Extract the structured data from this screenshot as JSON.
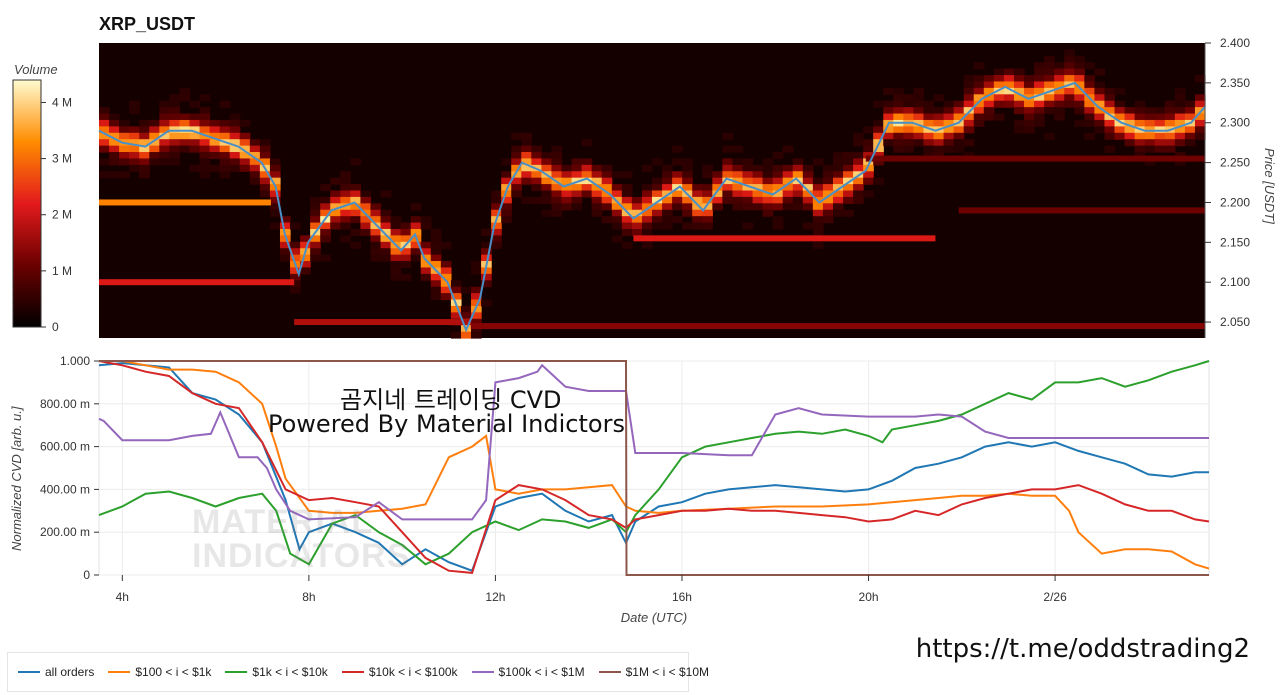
{
  "title": "XRP_USDT",
  "colorbar": {
    "label": "Volume",
    "ticks": [
      "4 M",
      "3 M",
      "2 M",
      "1 M",
      "0"
    ],
    "values": [
      4,
      3,
      2,
      1,
      0
    ]
  },
  "overlay": {
    "line1": "곰지네 트레이딩 CVD",
    "line2": "Powered By Material Indictors"
  },
  "watermark": [
    "MATERIAL",
    "INDICATORS"
  ],
  "telegram_link": "https://t.me/oddstrading2",
  "colors": {
    "price_line": "#4a90c8",
    "all_orders": "#1f77b4",
    "100_1k": "#ff7f0e",
    "1k_10k": "#2ca02c",
    "10k_100k": "#d62728",
    "100k_1M": "#9467bd",
    "1M_10M": "#8c564b"
  },
  "chart_data": [
    {
      "type": "heatmap",
      "title": "XRP_USDT",
      "ylabel": "Price [USDT]",
      "ylim": [
        2.03,
        2.4
      ],
      "yticks": [
        "2.400",
        "2.350",
        "2.300",
        "2.250",
        "2.200",
        "2.150",
        "2.100",
        "2.050"
      ],
      "ytick_values": [
        2.4,
        2.35,
        2.3,
        2.25,
        2.2,
        2.15,
        2.1,
        2.05
      ],
      "x_hours": [
        3.5,
        27.3
      ],
      "price_series": {
        "name": "price",
        "x": [
          3.5,
          4.0,
          4.5,
          5.0,
          5.5,
          6.0,
          6.5,
          7.0,
          7.3,
          7.5,
          7.8,
          8.0,
          8.5,
          9.0,
          9.5,
          10.0,
          10.3,
          10.5,
          11.0,
          11.4,
          11.7,
          12.0,
          12.3,
          12.6,
          13.0,
          13.5,
          14.0,
          14.5,
          15.0,
          15.5,
          16.0,
          16.5,
          17.0,
          17.5,
          18.0,
          18.5,
          19.0,
          19.5,
          20.0,
          20.5,
          21.0,
          21.5,
          22.0,
          22.5,
          23.0,
          23.5,
          24.0,
          24.5,
          25.0,
          25.5,
          26.0,
          26.5,
          27.0,
          27.3
        ],
        "y": [
          2.29,
          2.275,
          2.27,
          2.29,
          2.29,
          2.28,
          2.27,
          2.25,
          2.22,
          2.16,
          2.11,
          2.15,
          2.19,
          2.2,
          2.17,
          2.14,
          2.16,
          2.13,
          2.1,
          2.04,
          2.08,
          2.17,
          2.22,
          2.25,
          2.24,
          2.22,
          2.23,
          2.21,
          2.18,
          2.2,
          2.22,
          2.19,
          2.23,
          2.22,
          2.21,
          2.23,
          2.2,
          2.22,
          2.24,
          2.3,
          2.3,
          2.29,
          2.3,
          2.33,
          2.345,
          2.33,
          2.34,
          2.35,
          2.32,
          2.3,
          2.29,
          2.29,
          2.3,
          2.32
        ]
      },
      "volume_bands": [
        {
          "price": 2.2,
          "x_start": 3.5,
          "x_end": 7.2,
          "intensity": 0.8
        },
        {
          "price": 2.155,
          "x_start": 15.0,
          "x_end": 21.5,
          "intensity": 0.55
        },
        {
          "price": 2.1,
          "x_start": 3.5,
          "x_end": 7.7,
          "intensity": 0.55
        },
        {
          "price": 2.05,
          "x_start": 7.7,
          "x_end": 11.5,
          "intensity": 0.45
        },
        {
          "price": 2.045,
          "x_start": 11.5,
          "x_end": 27.3,
          "intensity": 0.35
        },
        {
          "price": 2.255,
          "x_start": 20.0,
          "x_end": 27.3,
          "intensity": 0.3
        },
        {
          "price": 2.19,
          "x_start": 22.0,
          "x_end": 27.3,
          "intensity": 0.3
        }
      ]
    },
    {
      "type": "line",
      "xlabel": "Date (UTC)",
      "ylabel": "Normalized CVD [arb. u.]",
      "ylim": [
        0,
        1.0
      ],
      "yticks": [
        "1.000",
        "800.00 m",
        "600.00 m",
        "400.00 m",
        "200.00 m",
        "0"
      ],
      "ytick_values": [
        1.0,
        0.8,
        0.6,
        0.4,
        0.2,
        0
      ],
      "xticks": [
        "4h",
        "8h",
        "12h",
        "16h",
        "20h",
        "2/26"
      ],
      "xtick_hours": [
        4,
        8,
        12,
        16,
        20,
        24
      ],
      "xlim_hours": [
        3.5,
        27.3
      ],
      "series": [
        {
          "name": "all orders",
          "color": "#1f77b4",
          "x": [
            3.5,
            4,
            5,
            5.5,
            6,
            6.5,
            7,
            7.5,
            7.8,
            8,
            8.5,
            9,
            9.5,
            10,
            10.5,
            11,
            11.5,
            12,
            12.5,
            13,
            13.5,
            14,
            14.5,
            14.8,
            15,
            15.5,
            16,
            16.5,
            17,
            17.5,
            18,
            18.5,
            19,
            19.5,
            20,
            20.5,
            21,
            21.5,
            22,
            22.5,
            23,
            23.5,
            24,
            24.5,
            25,
            25.5,
            26,
            26.5,
            27,
            27.3
          ],
          "y": [
            0.98,
            0.99,
            0.97,
            0.85,
            0.82,
            0.75,
            0.62,
            0.35,
            0.12,
            0.2,
            0.24,
            0.2,
            0.15,
            0.05,
            0.12,
            0.06,
            0.02,
            0.32,
            0.36,
            0.38,
            0.3,
            0.25,
            0.28,
            0.15,
            0.25,
            0.32,
            0.34,
            0.38,
            0.4,
            0.41,
            0.42,
            0.41,
            0.4,
            0.39,
            0.4,
            0.44,
            0.5,
            0.52,
            0.55,
            0.6,
            0.62,
            0.6,
            0.62,
            0.58,
            0.55,
            0.52,
            0.47,
            0.46,
            0.48,
            0.48
          ]
        },
        {
          "name": "$100 < i < $1k",
          "color": "#ff7f0e",
          "x": [
            3.5,
            4,
            4.5,
            5,
            5.5,
            6,
            6.5,
            7,
            7.3,
            7.5,
            8,
            8.5,
            9,
            9.5,
            10,
            10.5,
            11,
            11.5,
            11.8,
            12,
            12.5,
            13,
            13.5,
            14,
            14.5,
            14.8,
            15,
            15.5,
            16,
            17,
            18,
            19,
            20,
            20.5,
            21,
            21.5,
            22,
            22.5,
            23,
            23.5,
            24,
            24.3,
            24.5,
            25,
            25.5,
            26,
            26.5,
            27,
            27.3
          ],
          "y": [
            1.0,
            1.0,
            0.98,
            0.96,
            0.96,
            0.95,
            0.9,
            0.8,
            0.6,
            0.45,
            0.3,
            0.29,
            0.29,
            0.3,
            0.31,
            0.33,
            0.55,
            0.6,
            0.65,
            0.4,
            0.38,
            0.4,
            0.4,
            0.41,
            0.42,
            0.32,
            0.3,
            0.29,
            0.3,
            0.31,
            0.32,
            0.32,
            0.33,
            0.34,
            0.35,
            0.36,
            0.37,
            0.37,
            0.38,
            0.37,
            0.37,
            0.3,
            0.2,
            0.1,
            0.12,
            0.12,
            0.11,
            0.05,
            0.03
          ]
        },
        {
          "name": "$1k < i < $10k",
          "color": "#2ca02c",
          "x": [
            3.5,
            4,
            4.5,
            5,
            5.5,
            6,
            6.5,
            7,
            7.3,
            7.6,
            8,
            8.5,
            9,
            9.5,
            10,
            10.5,
            11,
            11.5,
            12,
            12.5,
            13,
            13.5,
            14,
            14.5,
            14.8,
            15,
            15.5,
            16,
            16.5,
            17,
            17.5,
            18,
            18.5,
            19,
            19.5,
            20,
            20.3,
            20.5,
            21,
            21.5,
            22,
            22.5,
            23,
            23.5,
            24,
            24.5,
            25,
            25.5,
            26,
            26.5,
            27,
            27.3
          ],
          "y": [
            0.28,
            0.32,
            0.38,
            0.39,
            0.36,
            0.32,
            0.36,
            0.38,
            0.3,
            0.1,
            0.05,
            0.24,
            0.28,
            0.2,
            0.14,
            0.05,
            0.1,
            0.2,
            0.25,
            0.21,
            0.26,
            0.25,
            0.22,
            0.26,
            0.2,
            0.28,
            0.4,
            0.55,
            0.6,
            0.62,
            0.64,
            0.66,
            0.67,
            0.66,
            0.68,
            0.65,
            0.62,
            0.68,
            0.7,
            0.72,
            0.75,
            0.8,
            0.85,
            0.82,
            0.9,
            0.9,
            0.92,
            0.88,
            0.91,
            0.95,
            0.98,
            1.0
          ]
        },
        {
          "name": "$10k < i < $100k",
          "color": "#d62728",
          "x": [
            3.5,
            4,
            4.5,
            5,
            5.5,
            6,
            6.5,
            7,
            7.5,
            8,
            8.5,
            9,
            9.5,
            10,
            10.5,
            11,
            11.5,
            12,
            12.5,
            13,
            13.5,
            14,
            14.5,
            14.8,
            15,
            15.5,
            16,
            16.5,
            17,
            17.5,
            18,
            18.5,
            19,
            19.5,
            20,
            20.5,
            21,
            21.5,
            22,
            22.5,
            23,
            23.5,
            24,
            24.5,
            25,
            25.5,
            26,
            26.5,
            27,
            27.3
          ],
          "y": [
            1.0,
            0.98,
            0.95,
            0.93,
            0.85,
            0.8,
            0.78,
            0.62,
            0.4,
            0.35,
            0.36,
            0.34,
            0.32,
            0.2,
            0.08,
            0.02,
            0.01,
            0.35,
            0.42,
            0.4,
            0.35,
            0.28,
            0.26,
            0.22,
            0.26,
            0.28,
            0.3,
            0.3,
            0.31,
            0.3,
            0.3,
            0.29,
            0.28,
            0.27,
            0.25,
            0.26,
            0.3,
            0.28,
            0.33,
            0.36,
            0.38,
            0.4,
            0.4,
            0.42,
            0.38,
            0.33,
            0.3,
            0.3,
            0.26,
            0.25
          ]
        },
        {
          "name": "$100k < i < $1M",
          "color": "#9467bd",
          "x": [
            3.5,
            3.6,
            4,
            5,
            5.5,
            5.9,
            6.1,
            6.5,
            6.9,
            7.1,
            7.3,
            7.6,
            8,
            9,
            9.5,
            10,
            10.5,
            11,
            11.5,
            11.8,
            12,
            12.5,
            12.9,
            13.0,
            13.5,
            14,
            14.5,
            14.8,
            15,
            16,
            17,
            17.5,
            18.0,
            18.5,
            19,
            20,
            21,
            21.5,
            22,
            22.5,
            23,
            24,
            25,
            26,
            27,
            27.3
          ],
          "y": [
            0.73,
            0.72,
            0.63,
            0.63,
            0.65,
            0.66,
            0.76,
            0.55,
            0.55,
            0.5,
            0.4,
            0.3,
            0.26,
            0.27,
            0.34,
            0.26,
            0.26,
            0.26,
            0.26,
            0.35,
            0.9,
            0.92,
            0.95,
            0.98,
            0.88,
            0.86,
            0.86,
            0.86,
            0.57,
            0.57,
            0.56,
            0.56,
            0.75,
            0.78,
            0.75,
            0.74,
            0.74,
            0.75,
            0.74,
            0.67,
            0.64,
            0.64,
            0.64,
            0.64,
            0.64,
            0.64
          ]
        },
        {
          "name": "$1M < i < $10M",
          "color": "#8c564b",
          "x": [
            3.5,
            14.8,
            14.81,
            15.0,
            27.3
          ],
          "y": [
            1.0,
            1.0,
            0.0,
            0.0,
            0.0
          ]
        }
      ]
    }
  ]
}
